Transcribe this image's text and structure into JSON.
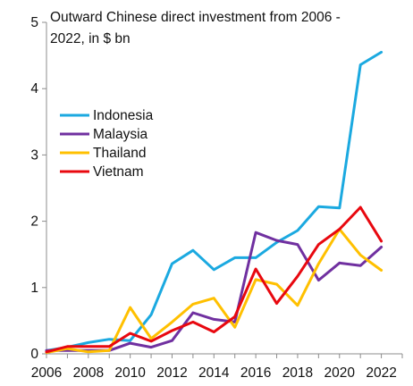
{
  "chart_data": {
    "type": "line",
    "title_lines": [
      "Outward Chinese direct investment from 2006 -",
      "2022, in $ bn"
    ],
    "xlabel": "",
    "ylabel": "",
    "x": [
      2006,
      2007,
      2008,
      2009,
      2010,
      2011,
      2012,
      2013,
      2014,
      2015,
      2016,
      2017,
      2018,
      2019,
      2020,
      2021,
      2022
    ],
    "xticks": [
      "2006",
      "2008",
      "2010",
      "2012",
      "2014",
      "2016",
      "2018",
      "2020",
      "2022"
    ],
    "yticks": [
      "0",
      "1",
      "2",
      "3",
      "4",
      "5"
    ],
    "ylim": [
      0,
      5
    ],
    "xlim": [
      2006,
      2023
    ],
    "grid": false,
    "legend_position": "left-middle",
    "series": [
      {
        "name": "Indonesia",
        "color": "#1BA9E0",
        "values": [
          0.05,
          0.1,
          0.17,
          0.22,
          0.2,
          0.59,
          1.36,
          1.56,
          1.27,
          1.45,
          1.45,
          1.68,
          1.86,
          2.22,
          2.2,
          4.36,
          4.55
        ]
      },
      {
        "name": "Malaysia",
        "color": "#7030A0",
        "values": [
          0.05,
          0.05,
          0.05,
          0.05,
          0.16,
          0.1,
          0.2,
          0.62,
          0.52,
          0.48,
          1.83,
          1.71,
          1.65,
          1.11,
          1.37,
          1.33,
          1.61
        ]
      },
      {
        "name": "Thailand",
        "color": "#FFC000",
        "values": [
          0.02,
          0.08,
          0.03,
          0.05,
          0.7,
          0.23,
          0.48,
          0.75,
          0.84,
          0.4,
          1.12,
          1.05,
          0.73,
          1.36,
          1.88,
          1.49,
          1.26
        ]
      },
      {
        "name": "Vietnam",
        "color": "#E8080F",
        "values": [
          0.03,
          0.11,
          0.11,
          0.11,
          0.31,
          0.19,
          0.35,
          0.48,
          0.33,
          0.56,
          1.28,
          0.76,
          1.17,
          1.65,
          1.88,
          2.21,
          1.7
        ]
      }
    ]
  }
}
